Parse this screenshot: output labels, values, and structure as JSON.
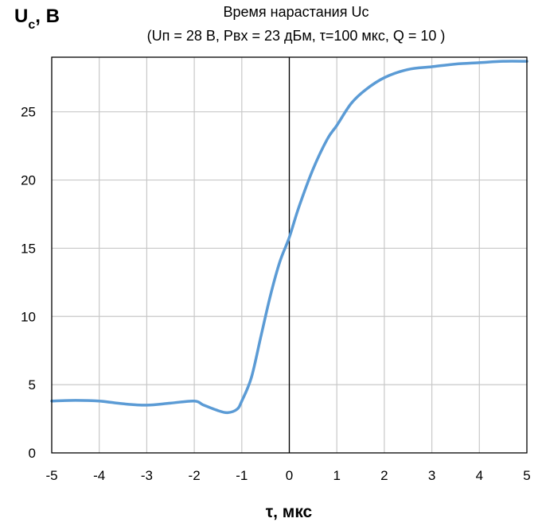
{
  "chart_data": {
    "type": "line",
    "title": "Время нарастания Uc",
    "subtitle": "(Uп = 28 В, Pвх = 23 дБм, τ=100 мкс, Q = 10 )",
    "ylabel": {
      "main": "U",
      "sub": "c",
      "rest": ", В"
    },
    "xlabel": "τ, мкс",
    "xlim": [
      -5,
      5
    ],
    "ylim": [
      0,
      29
    ],
    "x_ticks": [
      -5,
      -4,
      -3,
      -2,
      -1,
      0,
      1,
      2,
      3,
      4,
      5
    ],
    "y_ticks": [
      0,
      5,
      10,
      15,
      20,
      25
    ],
    "x_tick_labels": [
      "-5",
      "-4",
      "-3",
      "-2",
      "-1",
      "0",
      "1",
      "2",
      "3",
      "4",
      "5"
    ],
    "y_tick_labels": [
      "0",
      "5",
      "10",
      "15",
      "20",
      "25"
    ],
    "grid": true,
    "series": [
      {
        "color": "#5B9BD5",
        "points": [
          [
            -5,
            3.8
          ],
          [
            -4.5,
            3.85
          ],
          [
            -4,
            3.8
          ],
          [
            -3.5,
            3.6
          ],
          [
            -3,
            3.5
          ],
          [
            -2.5,
            3.65
          ],
          [
            -2,
            3.8
          ],
          [
            -1.8,
            3.5
          ],
          [
            -1.5,
            3.1
          ],
          [
            -1.3,
            2.95
          ],
          [
            -1.1,
            3.2
          ],
          [
            -1,
            3.8
          ],
          [
            -0.8,
            5.5
          ],
          [
            -0.6,
            8.5
          ],
          [
            -0.4,
            11.5
          ],
          [
            -0.2,
            14.0
          ],
          [
            0,
            15.8
          ],
          [
            0.2,
            18.0
          ],
          [
            0.5,
            20.8
          ],
          [
            0.8,
            23.0
          ],
          [
            1,
            24.0
          ],
          [
            1.3,
            25.6
          ],
          [
            1.6,
            26.6
          ],
          [
            2,
            27.5
          ],
          [
            2.5,
            28.1
          ],
          [
            3,
            28.3
          ],
          [
            3.5,
            28.5
          ],
          [
            4,
            28.6
          ],
          [
            4.5,
            28.7
          ],
          [
            5,
            28.7
          ]
        ]
      }
    ]
  }
}
